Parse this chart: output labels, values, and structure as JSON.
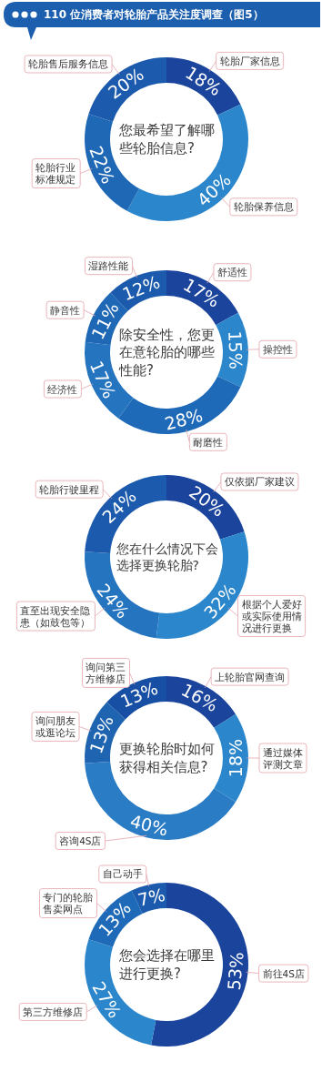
{
  "chart_data": [
    {
      "type": "donut",
      "title": "110 位消费者对轮胎产品关注度调查（图5）",
      "subtitle": "您最希望了解哪些轮胎信息?",
      "categories": [
        "轮胎厂家信息",
        "轮胎保养信息",
        "轮胎行业标准规定",
        "轮胎售后服务信息"
      ],
      "values": [
        18,
        40,
        22,
        20
      ],
      "value_labels": [
        "18%",
        "40%",
        "22%",
        "20%"
      ],
      "colors": [
        "#1b449c",
        "#2b86cb",
        "#1f68b5",
        "#1b5aac"
      ]
    },
    {
      "type": "donut",
      "subtitle": "除安全性，您更在意轮胎的哪些性能?",
      "categories": [
        "舒适性",
        "操控性",
        "耐磨性",
        "经济性",
        "静音性",
        "湿路性能"
      ],
      "values": [
        17,
        15,
        28,
        17,
        11,
        12
      ],
      "value_labels": [
        "17%",
        "15%",
        "28%",
        "17%",
        "11%",
        "12%"
      ],
      "colors": [
        "#1b449c",
        "#2b86cb",
        "#1f6ab8",
        "#2474bf",
        "#1f68b5",
        "#1b5aac"
      ]
    },
    {
      "type": "donut",
      "subtitle": "您在什么情况下会选择更换轮胎?",
      "categories": [
        "仅依据厂家建议",
        "根据个人爱好或实际使用情况进行更换",
        "直至出现安全隐患（如鼓包等）",
        "轮胎行驶里程"
      ],
      "values": [
        20,
        32,
        24,
        24
      ],
      "value_labels": [
        "20%",
        "32%",
        "24%",
        "24%"
      ],
      "colors": [
        "#1b449c",
        "#2b86cb",
        "#2474bf",
        "#1b5aac"
      ]
    },
    {
      "type": "donut",
      "subtitle": "更换轮胎时如何获得相关信息?",
      "categories": [
        "上轮胎官网查询",
        "通过媒体评测文章",
        "咨询4S店",
        "询问朋友或逛论坛",
        "询问第三方维修店"
      ],
      "values": [
        16,
        18,
        40,
        13,
        13
      ],
      "value_labels": [
        "16%",
        "18%",
        "40%",
        "13%",
        "13%"
      ],
      "colors": [
        "#1b449c",
        "#2b86cb",
        "#2a7cc4",
        "#1f64b1",
        "#174fa4"
      ]
    },
    {
      "type": "donut",
      "subtitle": "您会选择在哪里进行更换?",
      "categories": [
        "前往4S店",
        "第三方维修店",
        "专门的轮胎售卖网点",
        "自己动手"
      ],
      "values": [
        53,
        27,
        13,
        7
      ],
      "value_labels": [
        "53%",
        "27%",
        "13%",
        "7%"
      ],
      "colors": [
        "#1b449c",
        "#2b86cb",
        "#1f6ab8",
        "#1b5aac"
      ]
    }
  ]
}
